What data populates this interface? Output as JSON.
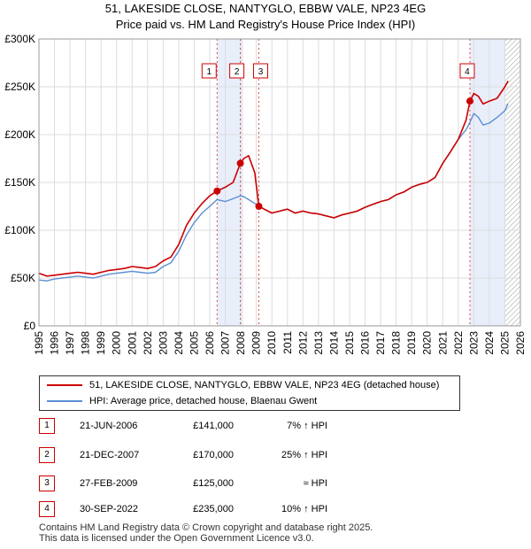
{
  "chart_data": {
    "type": "line",
    "title": "51, LAKESIDE CLOSE, NANTYGLO, EBBW VALE, NP23 4EG",
    "subtitle": "Price paid vs. HM Land Registry's House Price Index (HPI)",
    "xlabel": "",
    "ylabel": "",
    "xlim": [
      1995,
      2026
    ],
    "ylim": [
      0,
      300000
    ],
    "x_ticks": [
      "1995",
      "1996",
      "1997",
      "1998",
      "1999",
      "2000",
      "2001",
      "2002",
      "2003",
      "2004",
      "2005",
      "2006",
      "2007",
      "2008",
      "2009",
      "2010",
      "2011",
      "2012",
      "2013",
      "2014",
      "2015",
      "2016",
      "2017",
      "2018",
      "2019",
      "2020",
      "2021",
      "2022",
      "2023",
      "2024",
      "2025",
      "2026"
    ],
    "y_ticks": [
      {
        "value": 0,
        "label": "£0"
      },
      {
        "value": 50000,
        "label": "£50K"
      },
      {
        "value": 100000,
        "label": "£100K"
      },
      {
        "value": 150000,
        "label": "£150K"
      },
      {
        "value": 200000,
        "label": "£200K"
      },
      {
        "value": 250000,
        "label": "£250K"
      },
      {
        "value": 300000,
        "label": "£300K"
      }
    ],
    "grid": true,
    "shaded_ranges": [
      [
        2006.47,
        2008.16
      ],
      [
        2022.75,
        2025.0
      ]
    ],
    "hatched_range": [
      2025.0,
      2026.0
    ],
    "series": [
      {
        "name": "51, LAKESIDE CLOSE, NANTYGLO, EBBW VALE, NP23 4EG (detached house)",
        "color": "#cc0000",
        "x": [
          1995,
          1995.5,
          1996,
          1996.5,
          1997,
          1997.5,
          1998,
          1998.5,
          1999,
          1999.5,
          2000,
          2000.5,
          2001,
          2001.5,
          2002,
          2002.5,
          2003,
          2003.5,
          2004,
          2004.5,
          2005,
          2005.5,
          2006,
          2006.47,
          2007,
          2007.5,
          2007.97,
          2008.2,
          2008.5,
          2008.9,
          2009.16,
          2009.5,
          2010,
          2010.5,
          2011,
          2011.5,
          2012,
          2012.5,
          2013,
          2013.5,
          2014,
          2014.5,
          2015,
          2015.5,
          2016,
          2016.5,
          2017,
          2017.5,
          2018,
          2018.5,
          2019,
          2019.5,
          2020,
          2020.5,
          2021,
          2021.5,
          2022,
          2022.5,
          2022.75,
          2023,
          2023.3,
          2023.6,
          2024,
          2024.5,
          2025,
          2025.2
        ],
        "y": [
          55000,
          52000,
          53000,
          54000,
          55000,
          56000,
          55000,
          54000,
          56000,
          58000,
          59000,
          60000,
          62000,
          61000,
          60000,
          62000,
          68000,
          72000,
          85000,
          105000,
          118000,
          128000,
          136000,
          141000,
          145000,
          150000,
          170000,
          175000,
          178000,
          160000,
          125000,
          122000,
          118000,
          120000,
          122000,
          118000,
          120000,
          118000,
          117000,
          115000,
          113000,
          116000,
          118000,
          120000,
          124000,
          127000,
          130000,
          132000,
          137000,
          140000,
          145000,
          148000,
          150000,
          155000,
          170000,
          182000,
          195000,
          215000,
          235000,
          243000,
          240000,
          232000,
          235000,
          238000,
          250000,
          256000
        ]
      },
      {
        "name": "HPI: Average price, detached house, Blaenau Gwent",
        "color": "#5b8fd4",
        "x": [
          1995,
          1995.5,
          1996,
          1996.5,
          1997,
          1997.5,
          1998,
          1998.5,
          1999,
          1999.5,
          2000,
          2000.5,
          2001,
          2001.5,
          2002,
          2002.5,
          2003,
          2003.5,
          2004,
          2004.5,
          2005,
          2005.5,
          2006,
          2006.47,
          2007,
          2007.5,
          2007.97,
          2008.2,
          2008.5,
          2008.9,
          2009.16,
          2009.5,
          2010,
          2010.5,
          2011,
          2011.5,
          2012,
          2012.5,
          2013,
          2013.5,
          2014,
          2014.5,
          2015,
          2015.5,
          2016,
          2016.5,
          2017,
          2017.5,
          2018,
          2018.5,
          2019,
          2019.5,
          2020,
          2020.5,
          2021,
          2021.5,
          2022,
          2022.5,
          2022.75,
          2023,
          2023.3,
          2023.6,
          2024,
          2024.5,
          2025,
          2025.2
        ],
        "y": [
          48000,
          47000,
          49000,
          50000,
          51000,
          52000,
          51000,
          50000,
          52000,
          54000,
          55000,
          56000,
          57000,
          56000,
          55000,
          56000,
          62000,
          66000,
          78000,
          95000,
          108000,
          118000,
          125000,
          132000,
          130000,
          133000,
          136000,
          135000,
          132000,
          128000,
          125000,
          122000,
          118000,
          120000,
          122000,
          118000,
          120000,
          118000,
          117000,
          115000,
          113000,
          116000,
          118000,
          120000,
          124000,
          127000,
          130000,
          132000,
          137000,
          140000,
          145000,
          148000,
          150000,
          155000,
          170000,
          182000,
          195000,
          205000,
          213000,
          222000,
          218000,
          210000,
          212000,
          218000,
          225000,
          232000
        ]
      }
    ],
    "markers": [
      {
        "label": "1",
        "x": 2006.47,
        "y": 141000
      },
      {
        "label": "2",
        "x": 2007.97,
        "y": 170000
      },
      {
        "label": "3",
        "x": 2009.16,
        "y": 125000
      },
      {
        "label": "4",
        "x": 2022.75,
        "y": 235000
      }
    ]
  },
  "transactions": [
    {
      "num": "1",
      "date": "21-JUN-2006",
      "price": "£141,000",
      "hpi": "7% ↑ HPI"
    },
    {
      "num": "2",
      "date": "21-DEC-2007",
      "price": "£170,000",
      "hpi": "25% ↑ HPI"
    },
    {
      "num": "3",
      "date": "27-FEB-2009",
      "price": "£125,000",
      "hpi": "≈ HPI"
    },
    {
      "num": "4",
      "date": "30-SEP-2022",
      "price": "£235,000",
      "hpi": "10% ↑ HPI"
    }
  ],
  "footer": {
    "line1": "Contains HM Land Registry data © Crown copyright and database right 2025.",
    "line2": "This data is licensed under the Open Government Licence v3.0."
  },
  "colors": {
    "property": "#cc0000",
    "hpi": "#5b8fd4",
    "shade": "#e8eefa",
    "grid": "#dddddd"
  }
}
